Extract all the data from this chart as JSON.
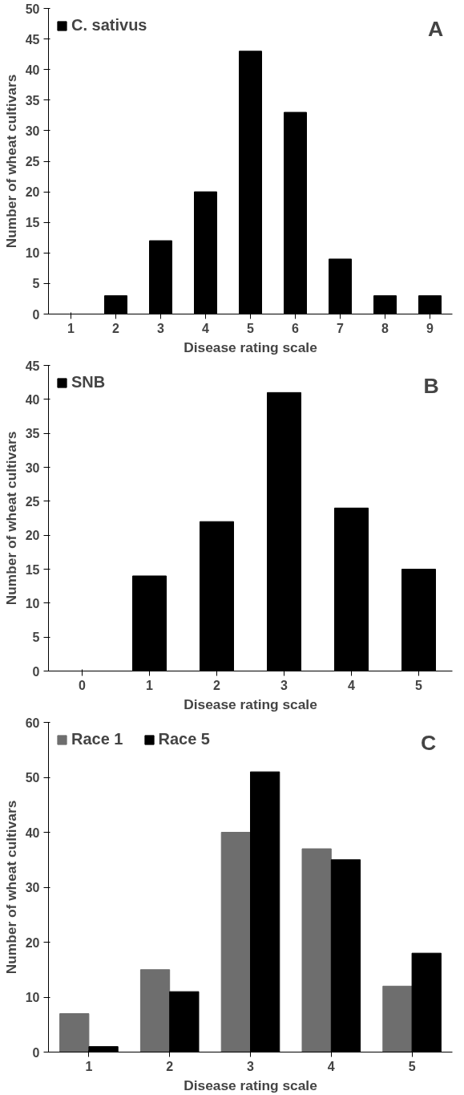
{
  "chart_data": [
    {
      "type": "bar",
      "categories": [
        "1",
        "2",
        "3",
        "4",
        "5",
        "6",
        "7",
        "8",
        "9"
      ],
      "series": [
        {
          "name": "C. sativus",
          "color": "#000000",
          "values": [
            0,
            3,
            12,
            20,
            43,
            33,
            9,
            3,
            3
          ]
        }
      ],
      "ylim": [
        0,
        50
      ],
      "yticks": [
        0,
        5,
        10,
        15,
        20,
        25,
        30,
        35,
        40,
        45,
        50
      ],
      "xlabel": "Disease rating scale",
      "ylabel": "Number of wheat cultivars",
      "annotations": [
        "A"
      ],
      "legend": "top left",
      "grid": false
    },
    {
      "type": "bar",
      "categories": [
        "0",
        "1",
        "2",
        "3",
        "4",
        "5"
      ],
      "series": [
        {
          "name": "SNB",
          "color": "#000000",
          "values": [
            0,
            14,
            22,
            41,
            24,
            15
          ]
        }
      ],
      "ylim": [
        0,
        45
      ],
      "yticks": [
        0,
        5,
        10,
        15,
        20,
        25,
        30,
        35,
        40,
        45
      ],
      "xlabel": "Disease rating scale",
      "ylabel": "Number of wheat cultivars",
      "annotations": [
        "B"
      ],
      "legend": "top left",
      "grid": false
    },
    {
      "type": "bar",
      "categories": [
        "1",
        "2",
        "3",
        "4",
        "5"
      ],
      "series": [
        {
          "name": "Race 1",
          "color": "#6e6e6e",
          "values": [
            7,
            15,
            40,
            37,
            12
          ]
        },
        {
          "name": "Race 5",
          "color": "#000000",
          "values": [
            1,
            11,
            51,
            35,
            18
          ]
        }
      ],
      "ylim": [
        0,
        60
      ],
      "yticks": [
        0,
        10,
        20,
        30,
        40,
        50,
        60
      ],
      "xlabel": "Disease rating scale",
      "ylabel": "Number of wheat cultivars",
      "annotations": [
        "C"
      ],
      "legend": "top left",
      "grid": false
    }
  ]
}
